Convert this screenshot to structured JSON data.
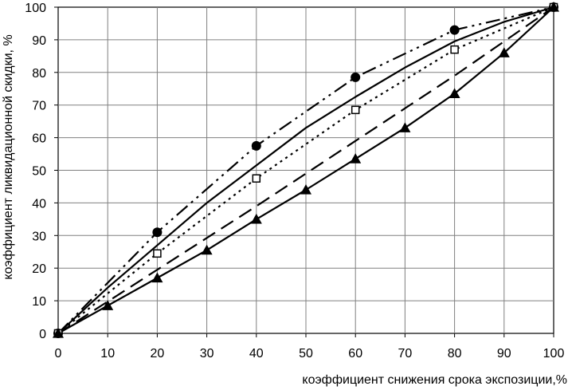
{
  "chart_data": {
    "type": "line",
    "xlabel": "коэффициент снижения срока экспозиции,%",
    "ylabel": "коэффициент ликвидационной скидки, %",
    "xlim": [
      0,
      100
    ],
    "ylim": [
      0,
      100
    ],
    "xticks": [
      "0",
      "10",
      "20",
      "30",
      "40",
      "50",
      "60",
      "70",
      "80",
      "90",
      "100"
    ],
    "yticks": [
      "0",
      "10",
      "20",
      "30",
      "40",
      "50",
      "60",
      "70",
      "80",
      "90",
      "100"
    ],
    "grid": true,
    "legend": "none",
    "colors": {
      "series": "#000000",
      "grid": "#808080",
      "background": "#ffffff"
    },
    "series": [
      {
        "style": "dash-dot-dot",
        "marker": "circle",
        "x": [
          0,
          20,
          40,
          60,
          80,
          100
        ],
        "y": [
          0,
          31,
          57.5,
          78.5,
          93,
          100
        ]
      },
      {
        "style": "solid",
        "marker": "none",
        "x": [
          0,
          10,
          20,
          30,
          40,
          50,
          60,
          70,
          80,
          90,
          100
        ],
        "y": [
          0,
          14,
          27,
          40,
          51.5,
          63,
          72.5,
          81.5,
          89.5,
          95.5,
          100
        ]
      },
      {
        "style": "dotted",
        "marker": "square",
        "x": [
          0,
          20,
          40,
          60,
          80,
          100
        ],
        "y": [
          0,
          24.5,
          47.5,
          68.5,
          87,
          100
        ]
      },
      {
        "style": "long-dash",
        "marker": "none",
        "x": [
          0,
          20,
          40,
          60,
          80,
          100
        ],
        "y": [
          0,
          19.5,
          39,
          59,
          79,
          100
        ]
      },
      {
        "style": "solid",
        "marker": "triangle",
        "x": [
          0,
          10,
          20,
          30,
          40,
          50,
          60,
          70,
          80,
          90,
          100
        ],
        "y": [
          0,
          8.5,
          17,
          25.5,
          35,
          44,
          53.5,
          63,
          73.5,
          86,
          100
        ]
      }
    ]
  }
}
